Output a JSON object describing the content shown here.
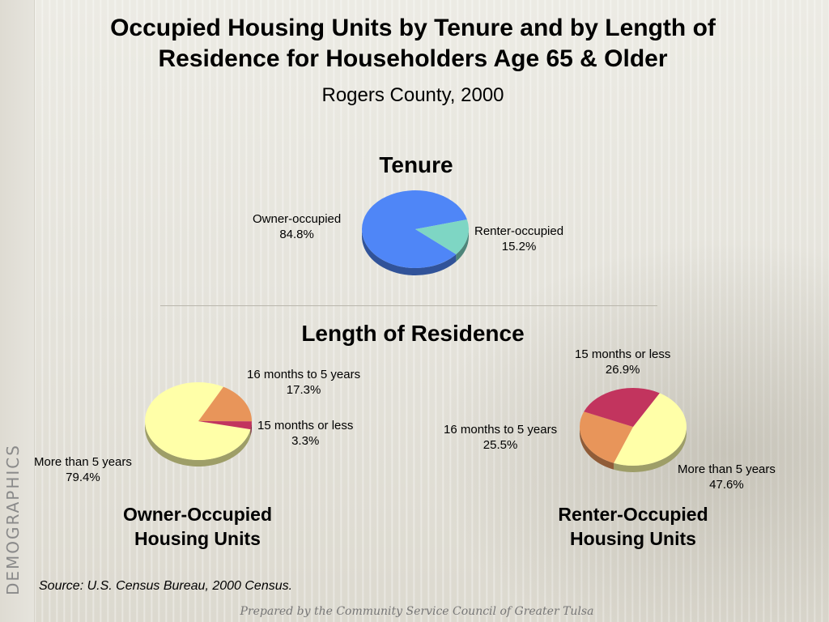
{
  "header": {
    "title_line1": "Occupied Housing Units by Tenure and  by Length of",
    "title_line2": "Residence for Householders Age 65 & Older",
    "subtitle": "Rogers County, 2000"
  },
  "side_label": "DEMOGRAPHICS",
  "sections": {
    "tenure": "Tenure",
    "length_of_residence": "Length of Residence"
  },
  "chart_data": [
    {
      "type": "pie",
      "title": "Tenure",
      "labels": [
        "Owner-occupied",
        "Renter-occupied"
      ],
      "values": [
        84.8,
        15.2
      ],
      "value_labels": [
        "84.8%",
        "15.2%"
      ],
      "colors": [
        "#4f86f7",
        "#7ed6c4"
      ]
    },
    {
      "type": "pie",
      "title": "Owner-Occupied Housing Units",
      "labels": [
        "More than 5 years",
        "16 months to 5 years",
        "15 months or less"
      ],
      "values": [
        79.4,
        17.3,
        3.3
      ],
      "value_labels": [
        "79.4%",
        "17.3%",
        "3.3%"
      ],
      "colors": [
        "#ffffa8",
        "#e8955a",
        "#c2345e"
      ]
    },
    {
      "type": "pie",
      "title": "Renter-Occupied Housing Units",
      "labels": [
        "More than 5 years",
        "16 months to 5 years",
        "15 months or less"
      ],
      "values": [
        47.6,
        25.5,
        26.9
      ],
      "value_labels": [
        "47.6%",
        "25.5%",
        "26.9%"
      ],
      "colors": [
        "#ffffa8",
        "#e8955a",
        "#c2345e"
      ]
    }
  ],
  "captions": {
    "owner_line1": "Owner-Occupied",
    "owner_line2": "Housing Units",
    "renter_line1": "Renter-Occupied",
    "renter_line2": "Housing Units"
  },
  "source": "Source:  U.S. Census Bureau, 2000 Census.",
  "footer": "Prepared by the Community Service Council of Greater Tulsa"
}
